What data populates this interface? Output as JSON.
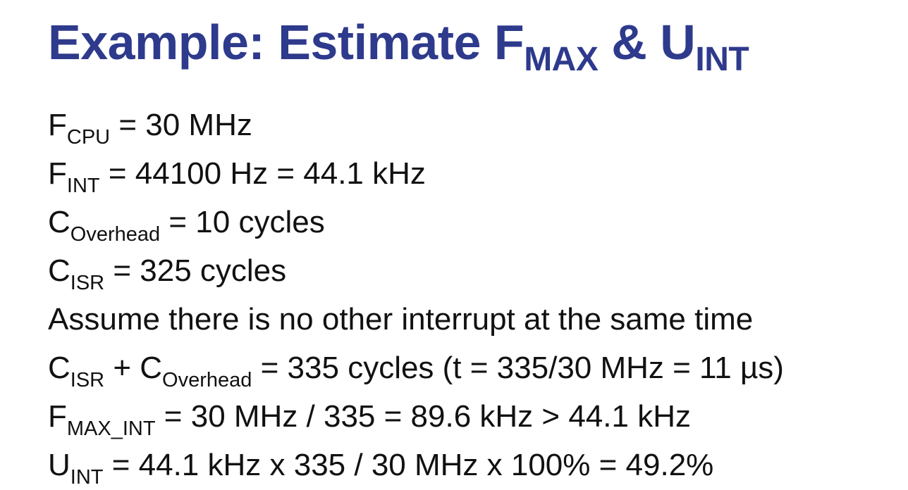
{
  "title": {
    "prefix": "Example: Estimate F",
    "sub1": "MAX",
    "middle": " & U",
    "sub2": "INT"
  },
  "lines": [
    {
      "a": "F",
      "sub": "CPU",
      "rest": " = 30 MHz"
    },
    {
      "a": "F",
      "sub": "INT",
      "rest": " = 44100 Hz = 44.1 kHz"
    },
    {
      "a": "C",
      "sub": "Overhead",
      "rest": " = 10 cycles"
    },
    {
      "a": "C",
      "sub": "ISR",
      "rest": " = 325 cycles"
    },
    {
      "text": "Assume there is no other interrupt at the same time"
    },
    {
      "a": "C",
      "sub": "ISR",
      "mid": " + C",
      "sub2": "Overhead",
      "rest": " = 335 cycles (t = 335/30 MHz = 11 µs)"
    },
    {
      "a": "F",
      "sub": "MAX_INT",
      "rest": " = 30 MHz / 335 = 89.6 kHz > 44.1 kHz"
    },
    {
      "a": "U",
      "sub": "INT",
      "rest": " = 44.1 kHz x 335 / 30 MHz x 100% = 49.2%"
    }
  ]
}
